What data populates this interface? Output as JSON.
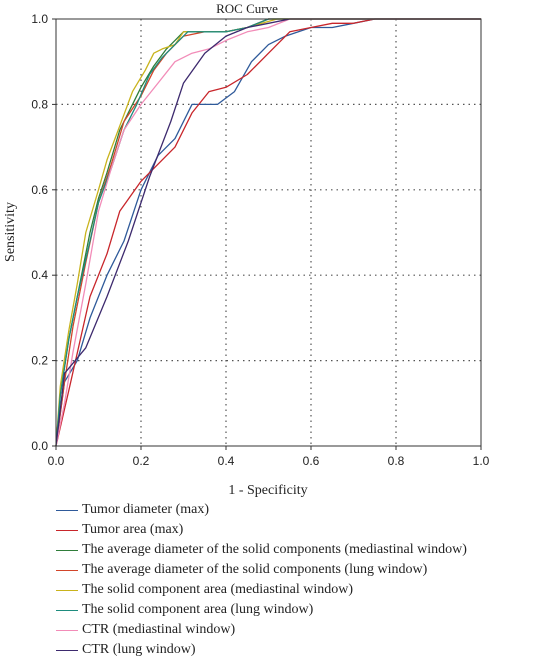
{
  "chart_data": {
    "type": "line",
    "title": "ROC Curve",
    "xlabel": "1 - Specificity",
    "ylabel": "Sensitivity",
    "xlim": [
      0,
      1
    ],
    "ylim": [
      0,
      1
    ],
    "x_ticks": [
      "0.0",
      "0.2",
      "0.4",
      "0.6",
      "0.8",
      "1.0"
    ],
    "y_ticks": [
      "0.0",
      "0.2",
      "0.4",
      "0.6",
      "0.8",
      "1.0"
    ],
    "grid": "dotted",
    "legend_position": "bottom",
    "series": [
      {
        "name": "Tumor diameter (max)",
        "color": "#2f5a9a",
        "x": [
          0,
          0.02,
          0.05,
          0.08,
          0.12,
          0.16,
          0.2,
          0.24,
          0.28,
          0.32,
          0.38,
          0.42,
          0.46,
          0.5,
          0.54,
          0.6,
          0.65,
          0.7,
          0.75,
          1
        ],
        "y": [
          0,
          0.15,
          0.2,
          0.3,
          0.4,
          0.48,
          0.6,
          0.68,
          0.72,
          0.8,
          0.8,
          0.83,
          0.9,
          0.94,
          0.96,
          0.98,
          0.98,
          0.99,
          1,
          1
        ]
      },
      {
        "name": "Tumor area (max)",
        "color": "#c8262b",
        "x": [
          0,
          0.03,
          0.08,
          0.12,
          0.15,
          0.2,
          0.24,
          0.28,
          0.32,
          0.36,
          0.4,
          0.45,
          0.5,
          0.55,
          0.6,
          0.65,
          0.7,
          0.75,
          1
        ],
        "y": [
          0,
          0.13,
          0.35,
          0.45,
          0.55,
          0.62,
          0.66,
          0.7,
          0.78,
          0.83,
          0.84,
          0.87,
          0.92,
          0.97,
          0.98,
          0.99,
          0.99,
          1,
          1
        ]
      },
      {
        "name": "The average diameter of the solid components (mediastinal window)",
        "color": "#2f7d3a",
        "x": [
          0,
          0.01,
          0.03,
          0.05,
          0.08,
          0.1,
          0.12,
          0.15,
          0.18,
          0.2,
          0.23,
          0.26,
          0.28,
          0.3,
          0.35,
          0.4,
          0.45,
          0.5,
          1
        ],
        "y": [
          0,
          0.12,
          0.25,
          0.35,
          0.5,
          0.58,
          0.64,
          0.74,
          0.8,
          0.84,
          0.89,
          0.93,
          0.95,
          0.97,
          0.97,
          0.97,
          0.98,
          1,
          1
        ]
      },
      {
        "name": "The average diameter of the solid components (lung window)",
        "color": "#d2452a",
        "x": [
          0,
          0.02,
          0.04,
          0.07,
          0.1,
          0.13,
          0.16,
          0.2,
          0.23,
          0.26,
          0.3,
          0.35,
          0.4,
          0.45,
          0.5,
          1
        ],
        "y": [
          0,
          0.15,
          0.28,
          0.43,
          0.57,
          0.66,
          0.76,
          0.82,
          0.88,
          0.92,
          0.96,
          0.97,
          0.97,
          0.98,
          1,
          1
        ]
      },
      {
        "name": "The solid component area (mediastinal window)",
        "color": "#c9b31c",
        "x": [
          0,
          0.01,
          0.03,
          0.05,
          0.07,
          0.1,
          0.12,
          0.15,
          0.18,
          0.21,
          0.23,
          0.25,
          0.28,
          0.3,
          0.35,
          0.4,
          0.45,
          0.52,
          1
        ],
        "y": [
          0,
          0.14,
          0.27,
          0.38,
          0.5,
          0.6,
          0.67,
          0.75,
          0.83,
          0.88,
          0.92,
          0.93,
          0.94,
          0.97,
          0.97,
          0.97,
          0.98,
          1,
          1
        ]
      },
      {
        "name": "The solid component area (lung window)",
        "color": "#1e8c7e",
        "x": [
          0,
          0.01,
          0.03,
          0.05,
          0.08,
          0.1,
          0.13,
          0.16,
          0.19,
          0.22,
          0.25,
          0.28,
          0.31,
          0.35,
          0.4,
          0.45,
          0.5,
          1
        ],
        "y": [
          0,
          0.12,
          0.25,
          0.35,
          0.48,
          0.57,
          0.65,
          0.74,
          0.8,
          0.87,
          0.91,
          0.94,
          0.97,
          0.97,
          0.97,
          0.98,
          1,
          1
        ]
      },
      {
        "name": "CTR (mediastinal window)",
        "color": "#f28cb8",
        "x": [
          0,
          0.02,
          0.04,
          0.07,
          0.1,
          0.13,
          0.16,
          0.2,
          0.24,
          0.28,
          0.32,
          0.36,
          0.4,
          0.45,
          0.5,
          0.55,
          1
        ],
        "y": [
          0,
          0.1,
          0.22,
          0.38,
          0.55,
          0.65,
          0.74,
          0.8,
          0.85,
          0.9,
          0.92,
          0.93,
          0.95,
          0.97,
          0.98,
          1,
          1
        ]
      },
      {
        "name": "CTR (lung window)",
        "color": "#3d2a6e",
        "x": [
          0,
          0.02,
          0.07,
          0.12,
          0.17,
          0.22,
          0.27,
          0.3,
          0.35,
          0.4,
          0.45,
          0.5,
          0.55,
          1
        ],
        "y": [
          0,
          0.17,
          0.23,
          0.35,
          0.48,
          0.63,
          0.76,
          0.85,
          0.92,
          0.96,
          0.98,
          0.99,
          1,
          1
        ]
      }
    ]
  }
}
